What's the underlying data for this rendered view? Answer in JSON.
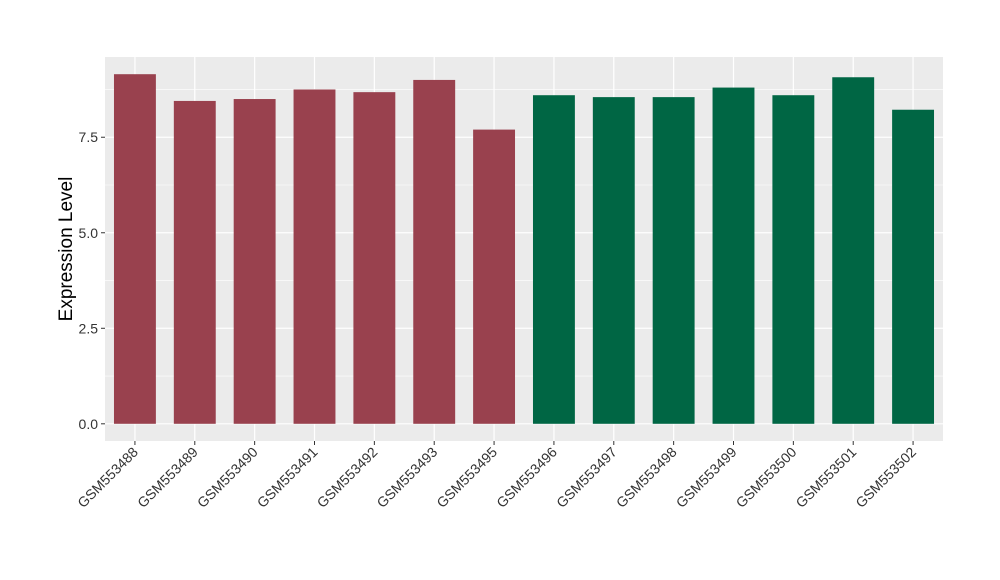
{
  "chart_data": {
    "type": "bar",
    "title": "",
    "xlabel": "",
    "ylabel": "Expression Level",
    "ylim": [
      -0.45,
      9.6
    ],
    "yticks": [
      0.0,
      2.5,
      5.0,
      7.5
    ],
    "ytick_labels": [
      "0.0",
      "2.5",
      "5.0",
      "7.5"
    ],
    "grid": true,
    "legend": "none",
    "panel_background": "#ebebeb",
    "grid_color": "#ffffff",
    "categories": [
      "GSM553488",
      "GSM553489",
      "GSM553490",
      "GSM553491",
      "GSM553492",
      "GSM553493",
      "GSM553495",
      "GSM553496",
      "GSM553497",
      "GSM553498",
      "GSM553499",
      "GSM553500",
      "GSM553501",
      "GSM553502"
    ],
    "values": [
      9.15,
      8.45,
      8.5,
      8.75,
      8.68,
      9.0,
      7.7,
      8.6,
      8.55,
      8.55,
      8.8,
      8.6,
      9.07,
      8.22
    ],
    "bar_colors": [
      "#99414e",
      "#99414e",
      "#99414e",
      "#99414e",
      "#99414e",
      "#99414e",
      "#99414e",
      "#006644",
      "#006644",
      "#006644",
      "#006644",
      "#006644",
      "#006644",
      "#006644"
    ]
  }
}
